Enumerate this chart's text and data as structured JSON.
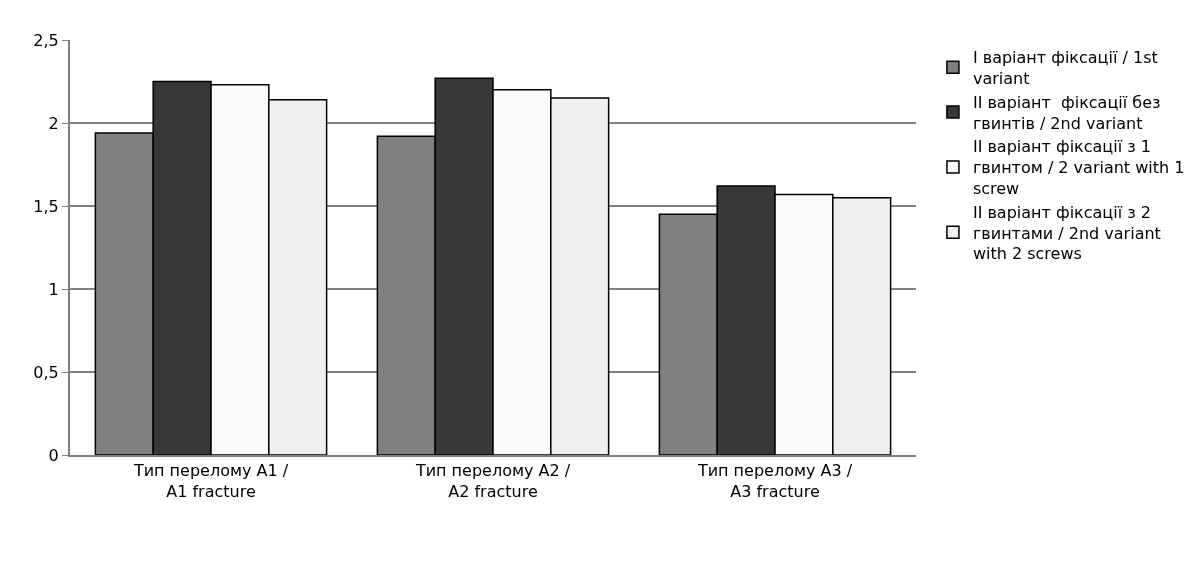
{
  "chart_data": {
    "type": "bar",
    "categories": [
      "Тип перелому А1 / A1 fracture",
      "Тип перелому А2 / A2 fracture",
      "Тип перелому А3 / A3 fracture"
    ],
    "series": [
      {
        "name": "I варіант фіксації / 1st variant",
        "color": "#808080",
        "values": [
          1.94,
          1.92,
          1.45
        ]
      },
      {
        "name": "II варіант  фіксації без гвинтів / 2nd variant",
        "color": "#383838",
        "values": [
          2.25,
          2.27,
          1.62
        ]
      },
      {
        "name": "II варіант фіксації з 1 гвинтом / 2 variant with 1 screw",
        "color": "#fafafa",
        "values": [
          2.23,
          2.2,
          1.57
        ]
      },
      {
        "name": "II варіант фіксації з 2 гвинтами / 2nd variant with 2 screws",
        "color": "#efefef",
        "values": [
          2.14,
          2.15,
          1.55
        ]
      }
    ],
    "ylim": [
      0,
      2.5
    ],
    "yticks": [
      {
        "value": 0,
        "label": "0"
      },
      {
        "value": 0.5,
        "label": "0,5"
      },
      {
        "value": 1,
        "label": "1"
      },
      {
        "value": 1.5,
        "label": "1,5"
      },
      {
        "value": 2,
        "label": "2"
      },
      {
        "value": 2.5,
        "label": "2,5"
      }
    ],
    "grid": "y",
    "legend": "right"
  }
}
